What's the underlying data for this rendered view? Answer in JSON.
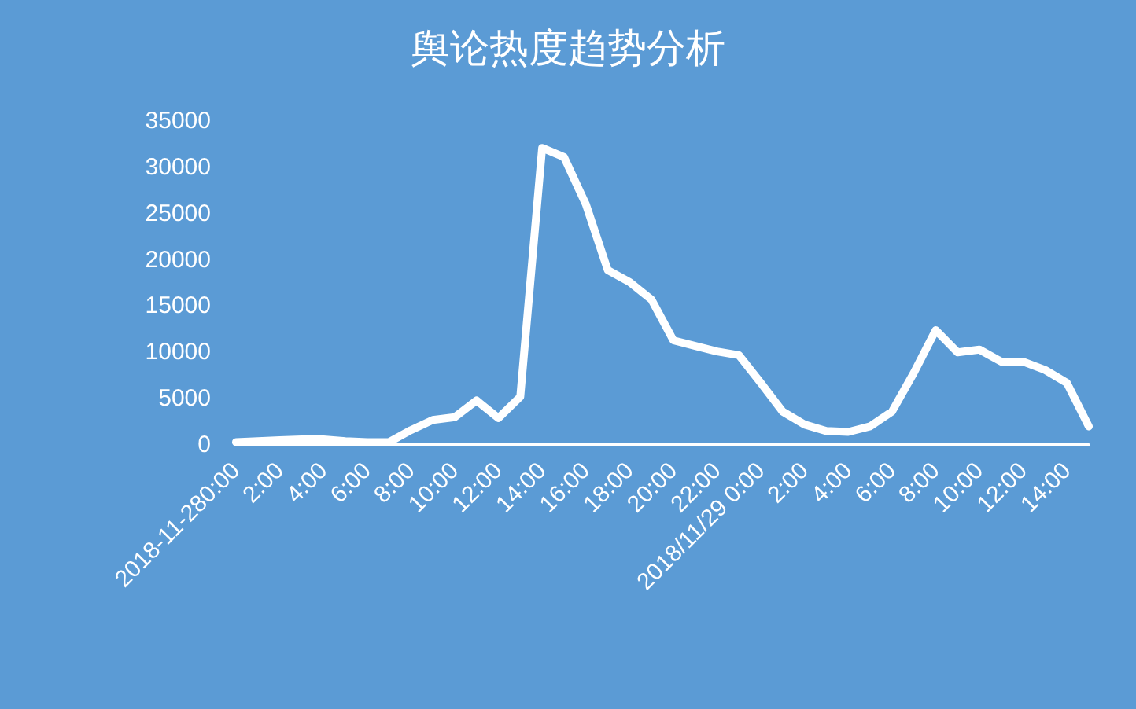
{
  "chart_data": {
    "type": "line",
    "title": "舆论热度趋势分析",
    "categories": [
      "2018-11-280:00",
      null,
      "2:00",
      null,
      "4:00",
      null,
      "6:00",
      null,
      "8:00",
      null,
      "10:00",
      null,
      "12:00",
      null,
      "14:00",
      null,
      "16:00",
      null,
      "18:00",
      null,
      "20:00",
      null,
      "22:00",
      null,
      "2018/11/29 0:00",
      null,
      "2:00",
      null,
      "4:00",
      null,
      "6:00",
      null,
      "8:00",
      null,
      "10:00",
      null,
      "12:00",
      null,
      "14:00",
      null
    ],
    "series": [
      {
        "color": "#ffffff",
        "values": [
          300,
          400,
          500,
          600,
          600,
          400,
          300,
          300,
          1600,
          2700,
          3000,
          4800,
          2900,
          5200,
          32100,
          31100,
          26000,
          18900,
          17600,
          15700,
          11300,
          10700,
          10100,
          9700,
          6700,
          3600,
          2200,
          1500,
          1400,
          2000,
          3600,
          7800,
          12400,
          10000,
          10300,
          9000,
          9000,
          8100,
          6700,
          2000
        ]
      }
    ],
    "ylim": [
      0,
      35000
    ],
    "yticks": [
      0,
      5000,
      10000,
      15000,
      20000,
      25000,
      30000,
      35000
    ],
    "grid": false,
    "marker": "none",
    "line_style": "solid"
  }
}
